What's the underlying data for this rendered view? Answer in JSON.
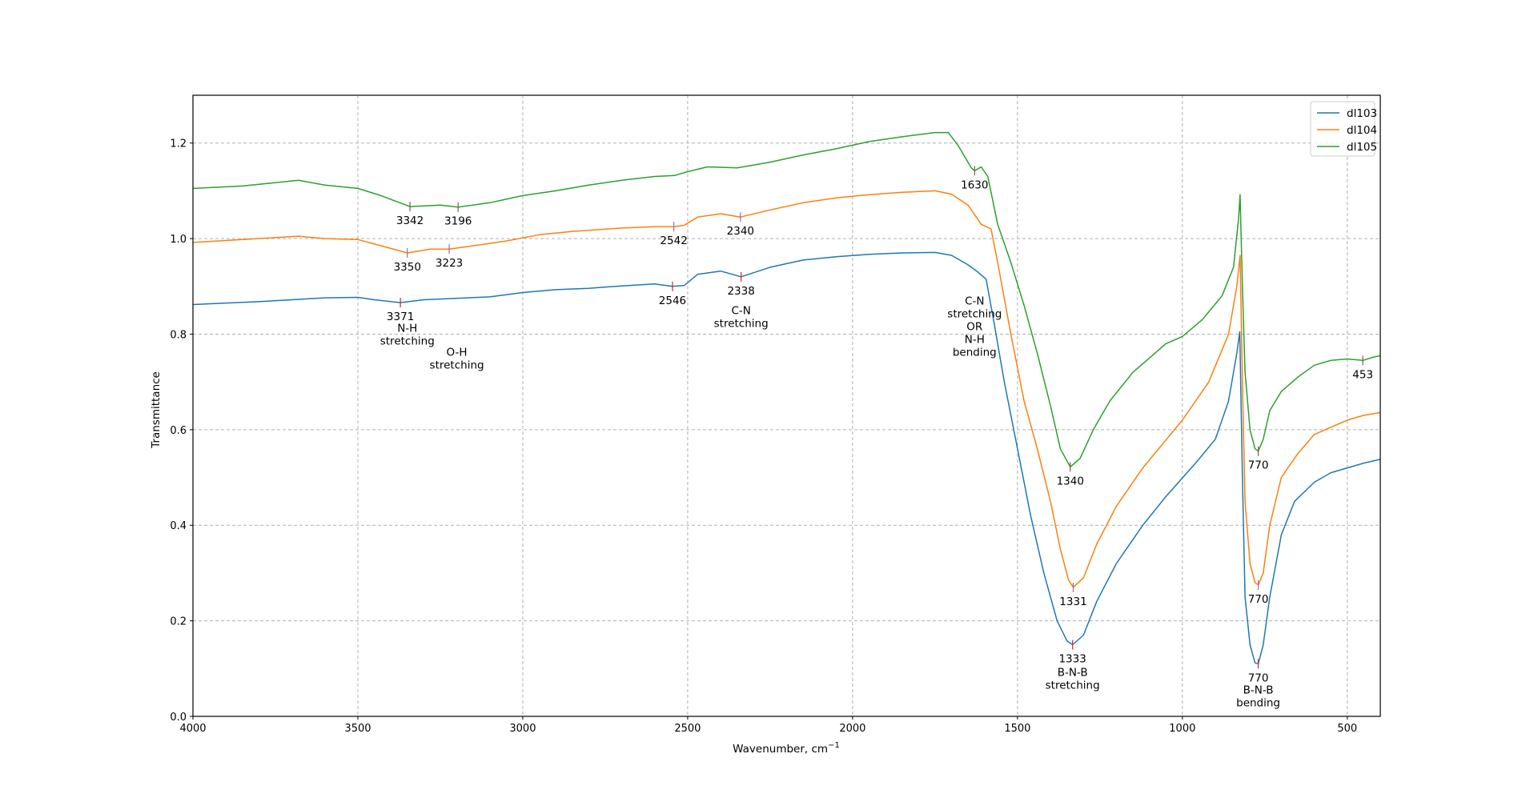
{
  "chart_data": {
    "type": "line",
    "title": "",
    "xlabel": "Wavenumber, cm",
    "xlabel_superscript": "−1",
    "ylabel": "Transmittance",
    "xlim": [
      4000,
      400
    ],
    "ylim": [
      0.0,
      1.3
    ],
    "x_ticks": [
      4000,
      3500,
      3000,
      2500,
      2000,
      1500,
      1000,
      500
    ],
    "y_ticks": [
      "0.0",
      "0.2",
      "0.4",
      "0.6",
      "0.8",
      "1.0",
      "1.2"
    ],
    "grid": true,
    "legend_position": "upper right",
    "series": [
      {
        "name": "dl103",
        "color": "#1f77b4",
        "points": [
          [
            4000,
            0.862
          ],
          [
            3800,
            0.868
          ],
          [
            3600,
            0.876
          ],
          [
            3500,
            0.877
          ],
          [
            3450,
            0.872
          ],
          [
            3371,
            0.866
          ],
          [
            3300,
            0.872
          ],
          [
            3100,
            0.878
          ],
          [
            3000,
            0.887
          ],
          [
            2900,
            0.893
          ],
          [
            2800,
            0.896
          ],
          [
            2700,
            0.901
          ],
          [
            2600,
            0.905
          ],
          [
            2546,
            0.9
          ],
          [
            2510,
            0.902
          ],
          [
            2470,
            0.925
          ],
          [
            2400,
            0.932
          ],
          [
            2338,
            0.92
          ],
          [
            2250,
            0.94
          ],
          [
            2150,
            0.955
          ],
          [
            2050,
            0.962
          ],
          [
            1950,
            0.967
          ],
          [
            1850,
            0.97
          ],
          [
            1750,
            0.971
          ],
          [
            1700,
            0.965
          ],
          [
            1650,
            0.945
          ],
          [
            1620,
            0.93
          ],
          [
            1595,
            0.915
          ],
          [
            1570,
            0.82
          ],
          [
            1540,
            0.7
          ],
          [
            1500,
            0.56
          ],
          [
            1460,
            0.42
          ],
          [
            1420,
            0.3
          ],
          [
            1380,
            0.2
          ],
          [
            1350,
            0.158
          ],
          [
            1333,
            0.15
          ],
          [
            1300,
            0.17
          ],
          [
            1260,
            0.24
          ],
          [
            1200,
            0.32
          ],
          [
            1120,
            0.4
          ],
          [
            1050,
            0.46
          ],
          [
            960,
            0.53
          ],
          [
            900,
            0.58
          ],
          [
            860,
            0.66
          ],
          [
            835,
            0.76
          ],
          [
            826,
            0.805
          ],
          [
            818,
            0.5
          ],
          [
            810,
            0.25
          ],
          [
            795,
            0.15
          ],
          [
            780,
            0.112
          ],
          [
            770,
            0.11
          ],
          [
            755,
            0.15
          ],
          [
            735,
            0.25
          ],
          [
            700,
            0.38
          ],
          [
            660,
            0.45
          ],
          [
            600,
            0.49
          ],
          [
            550,
            0.51
          ],
          [
            500,
            0.52
          ],
          [
            450,
            0.53
          ],
          [
            400,
            0.538
          ]
        ]
      },
      {
        "name": "dl104",
        "color": "#ff7f0e",
        "points": [
          [
            4000,
            0.992
          ],
          [
            3850,
            0.998
          ],
          [
            3680,
            1.005
          ],
          [
            3600,
            1.0
          ],
          [
            3500,
            0.998
          ],
          [
            3430,
            0.985
          ],
          [
            3350,
            0.97
          ],
          [
            3280,
            0.978
          ],
          [
            3223,
            0.978
          ],
          [
            3150,
            0.985
          ],
          [
            3050,
            0.995
          ],
          [
            2950,
            1.008
          ],
          [
            2850,
            1.015
          ],
          [
            2700,
            1.022
          ],
          [
            2600,
            1.025
          ],
          [
            2542,
            1.025
          ],
          [
            2510,
            1.028
          ],
          [
            2470,
            1.045
          ],
          [
            2400,
            1.052
          ],
          [
            2340,
            1.045
          ],
          [
            2250,
            1.06
          ],
          [
            2150,
            1.075
          ],
          [
            2050,
            1.085
          ],
          [
            1950,
            1.092
          ],
          [
            1850,
            1.097
          ],
          [
            1750,
            1.1
          ],
          [
            1700,
            1.093
          ],
          [
            1650,
            1.07
          ],
          [
            1610,
            1.03
          ],
          [
            1580,
            1.02
          ],
          [
            1560,
            0.95
          ],
          [
            1520,
            0.8
          ],
          [
            1480,
            0.66
          ],
          [
            1440,
            0.56
          ],
          [
            1400,
            0.45
          ],
          [
            1370,
            0.35
          ],
          [
            1345,
            0.285
          ],
          [
            1331,
            0.27
          ],
          [
            1300,
            0.29
          ],
          [
            1260,
            0.36
          ],
          [
            1200,
            0.44
          ],
          [
            1120,
            0.52
          ],
          [
            1000,
            0.62
          ],
          [
            920,
            0.7
          ],
          [
            860,
            0.8
          ],
          [
            835,
            0.9
          ],
          [
            825,
            0.965
          ],
          [
            818,
            0.7
          ],
          [
            810,
            0.45
          ],
          [
            795,
            0.32
          ],
          [
            780,
            0.28
          ],
          [
            770,
            0.275
          ],
          [
            755,
            0.3
          ],
          [
            735,
            0.4
          ],
          [
            700,
            0.5
          ],
          [
            650,
            0.55
          ],
          [
            600,
            0.59
          ],
          [
            500,
            0.62
          ],
          [
            450,
            0.63
          ],
          [
            400,
            0.636
          ]
        ]
      },
      {
        "name": "dl105",
        "color": "#2ca02c",
        "points": [
          [
            4000,
            1.105
          ],
          [
            3850,
            1.11
          ],
          [
            3680,
            1.122
          ],
          [
            3600,
            1.112
          ],
          [
            3500,
            1.105
          ],
          [
            3430,
            1.09
          ],
          [
            3342,
            1.067
          ],
          [
            3250,
            1.07
          ],
          [
            3196,
            1.066
          ],
          [
            3100,
            1.075
          ],
          [
            3000,
            1.09
          ],
          [
            2900,
            1.1
          ],
          [
            2800,
            1.112
          ],
          [
            2700,
            1.122
          ],
          [
            2600,
            1.13
          ],
          [
            2540,
            1.132
          ],
          [
            2500,
            1.14
          ],
          [
            2440,
            1.15
          ],
          [
            2350,
            1.148
          ],
          [
            2250,
            1.16
          ],
          [
            2150,
            1.175
          ],
          [
            2050,
            1.188
          ],
          [
            1950,
            1.203
          ],
          [
            1850,
            1.213
          ],
          [
            1750,
            1.222
          ],
          [
            1710,
            1.222
          ],
          [
            1680,
            1.195
          ],
          [
            1640,
            1.148
          ],
          [
            1630,
            1.142
          ],
          [
            1610,
            1.15
          ],
          [
            1590,
            1.13
          ],
          [
            1560,
            1.03
          ],
          [
            1520,
            0.95
          ],
          [
            1480,
            0.86
          ],
          [
            1440,
            0.76
          ],
          [
            1400,
            0.65
          ],
          [
            1370,
            0.56
          ],
          [
            1340,
            0.522
          ],
          [
            1310,
            0.54
          ],
          [
            1270,
            0.6
          ],
          [
            1220,
            0.66
          ],
          [
            1150,
            0.72
          ],
          [
            1050,
            0.78
          ],
          [
            1000,
            0.795
          ],
          [
            940,
            0.83
          ],
          [
            880,
            0.88
          ],
          [
            845,
            0.94
          ],
          [
            830,
            1.04
          ],
          [
            825,
            1.092
          ],
          [
            818,
            0.9
          ],
          [
            810,
            0.72
          ],
          [
            795,
            0.6
          ],
          [
            780,
            0.56
          ],
          [
            770,
            0.555
          ],
          [
            755,
            0.58
          ],
          [
            735,
            0.64
          ],
          [
            700,
            0.68
          ],
          [
            650,
            0.71
          ],
          [
            600,
            0.735
          ],
          [
            550,
            0.745
          ],
          [
            500,
            0.748
          ],
          [
            453,
            0.745
          ],
          [
            420,
            0.752
          ],
          [
            400,
            0.755
          ]
        ]
      }
    ],
    "annotations": [
      {
        "text": "3342",
        "x": 3342,
        "y": 1.067,
        "dy": 22,
        "series": "dl105"
      },
      {
        "text": "3196",
        "x": 3196,
        "y": 1.066,
        "dy": 22,
        "series": "dl105"
      },
      {
        "text": "1630",
        "x": 1630,
        "y": 1.142,
        "dy": 22,
        "series": "dl105"
      },
      {
        "text": "1340",
        "x": 1340,
        "y": 0.522,
        "dy": 22,
        "series": "dl105"
      },
      {
        "text": "770",
        "x": 770,
        "y": 0.555,
        "dy": 22,
        "series": "dl105"
      },
      {
        "text": "453",
        "x": 453,
        "y": 0.745,
        "dy": 22,
        "series": "dl105"
      },
      {
        "text": "3350",
        "x": 3350,
        "y": 0.97,
        "dy": 22,
        "series": "dl104"
      },
      {
        "text": "3223",
        "x": 3223,
        "y": 0.978,
        "dy": 22,
        "series": "dl104"
      },
      {
        "text": "2542",
        "x": 2542,
        "y": 1.025,
        "dy": 22,
        "series": "dl104"
      },
      {
        "text": "2340",
        "x": 2340,
        "y": 1.045,
        "dy": 22,
        "series": "dl104"
      },
      {
        "text": "1331",
        "x": 1331,
        "y": 0.27,
        "dy": 22,
        "series": "dl104"
      },
      {
        "text": "770",
        "x": 770,
        "y": 0.275,
        "dy": 22,
        "series": "dl104"
      },
      {
        "text": "3371",
        "x": 3371,
        "y": 0.866,
        "dy": 22,
        "series": "dl103"
      },
      {
        "text": "2546",
        "x": 2546,
        "y": 0.9,
        "dy": 22,
        "series": "dl103"
      },
      {
        "text": "2338",
        "x": 2338,
        "y": 0.92,
        "dy": 22,
        "series": "dl103"
      },
      {
        "text": "1333",
        "x": 1333,
        "y": 0.15,
        "dy": 22,
        "series": "dl103"
      },
      {
        "text": "770",
        "x": 770,
        "y": 0.11,
        "dy": 22,
        "series": "dl103"
      }
    ],
    "labels": [
      {
        "lines": [
          "N-H",
          "stretching"
        ],
        "x": 3350,
        "y": 0.805
      },
      {
        "lines": [
          "O-H",
          "stretching"
        ],
        "x": 3200,
        "y": 0.755
      },
      {
        "lines": [
          "C-N",
          "stretching"
        ],
        "x": 2338,
        "y": 0.842
      },
      {
        "lines": [
          "C-N",
          "stretching",
          "OR",
          "N-H",
          "bending"
        ],
        "x": 1630,
        "y": 0.862
      },
      {
        "lines": [
          "B-N-B",
          "stretching"
        ],
        "x": 1333,
        "y": 0.085
      },
      {
        "lines": [
          "B-N-B",
          "bending"
        ],
        "x": 770,
        "y": 0.048
      }
    ]
  }
}
